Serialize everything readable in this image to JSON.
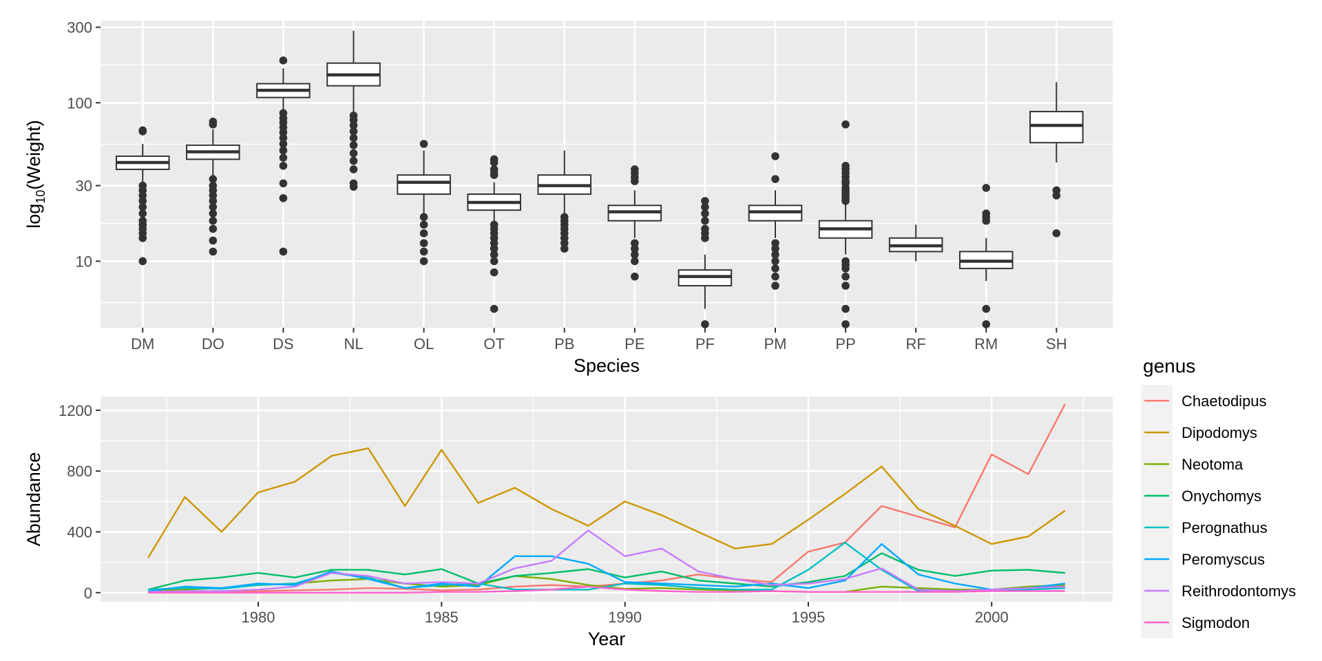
{
  "chart_data": [
    {
      "type": "box",
      "xlabel": "Species",
      "ylabel": "log10(Weight)",
      "ylabel_base": "log",
      "ylabel_sub": "10",
      "ylabel_rest": "(Weight)",
      "y_scale": "log10",
      "ylim": [
        3.8,
        330
      ],
      "yticks": [
        10,
        30,
        100,
        300
      ],
      "grid": true,
      "boxes": [
        {
          "species": "DM",
          "q1": 38,
          "median": 42,
          "q3": 46,
          "wlo": 31,
          "whi": 55,
          "outliers": [
            66,
            67,
            30,
            28,
            26,
            24,
            22,
            20,
            18,
            17,
            16,
            15,
            14,
            10
          ]
        },
        {
          "species": "DO",
          "q1": 44,
          "median": 49,
          "q3": 54,
          "wlo": 34,
          "whi": 68,
          "outliers": [
            73,
            76,
            33,
            30,
            28,
            26,
            24,
            22,
            20,
            18,
            16,
            13.5,
            11.5
          ]
        },
        {
          "species": "DS",
          "q1": 108,
          "median": 120,
          "q3": 132,
          "wlo": 88,
          "whi": 165,
          "outliers": [
            185,
            86,
            80,
            75,
            70,
            65,
            60,
            55,
            50,
            45,
            40,
            31,
            25,
            11.5
          ]
        },
        {
          "species": "NL",
          "q1": 128,
          "median": 150,
          "q3": 178,
          "wlo": 86,
          "whi": 285,
          "outliers": [
            83,
            78,
            72,
            66,
            60,
            54,
            48,
            43,
            38,
            31,
            29.5
          ]
        },
        {
          "species": "OL",
          "q1": 26.5,
          "median": 31.5,
          "q3": 35,
          "wlo": 20,
          "whi": 50,
          "outliers": [
            55,
            19,
            17,
            15,
            13,
            11.5,
            10
          ]
        },
        {
          "species": "OT",
          "q1": 21,
          "median": 23.5,
          "q3": 26.5,
          "wlo": 17,
          "whi": 31.5,
          "outliers": [
            44,
            42,
            38,
            36,
            35,
            17,
            16,
            15,
            14,
            13,
            12,
            11,
            10,
            8.5,
            5
          ]
        },
        {
          "species": "PB",
          "q1": 26.5,
          "median": 30,
          "q3": 35,
          "wlo": 19.5,
          "whi": 50,
          "outliers": [
            19,
            18,
            17,
            16,
            15,
            14,
            13,
            12
          ]
        },
        {
          "species": "PE",
          "q1": 18,
          "median": 20.5,
          "q3": 22.5,
          "wlo": 14,
          "whi": 28,
          "outliers": [
            38,
            36,
            34,
            32,
            13,
            12,
            11,
            10,
            8
          ]
        },
        {
          "species": "PF",
          "q1": 7,
          "median": 8,
          "q3": 8.8,
          "wlo": 5,
          "whi": 11,
          "outliers": [
            24,
            22,
            20,
            18,
            16,
            15,
            14,
            4
          ]
        },
        {
          "species": "PM",
          "q1": 18,
          "median": 20.5,
          "q3": 22.5,
          "wlo": 14,
          "whi": 28,
          "outliers": [
            46,
            33,
            13,
            12,
            11,
            10,
            9,
            8,
            7
          ]
        },
        {
          "species": "PP",
          "q1": 14,
          "median": 16,
          "q3": 18,
          "wlo": 11,
          "whi": 23,
          "outliers": [
            73,
            40,
            38,
            36,
            34,
            32,
            31,
            29,
            28,
            27,
            26,
            25,
            24,
            10,
            9.5,
            9,
            8,
            7,
            5,
            4
          ]
        },
        {
          "species": "RF",
          "q1": 11.5,
          "median": 12.5,
          "q3": 14,
          "wlo": 10,
          "whi": 17,
          "outliers": []
        },
        {
          "species": "RM",
          "q1": 9,
          "median": 10,
          "q3": 11.5,
          "wlo": 7.5,
          "whi": 14,
          "outliers": [
            29,
            20,
            19,
            18,
            5,
            4
          ]
        },
        {
          "species": "SH",
          "q1": 56,
          "median": 72,
          "q3": 88,
          "wlo": 42,
          "whi": 135,
          "outliers": [
            28,
            26,
            15
          ]
        }
      ]
    },
    {
      "type": "line",
      "xlabel": "Year",
      "ylabel": "Abundance",
      "xlim": [
        1975.7,
        2003.3
      ],
      "ylim": [
        -60,
        1290
      ],
      "xticks": [
        1980,
        1985,
        1990,
        1995,
        2000
      ],
      "yticks": [
        0,
        400,
        800,
        1200
      ],
      "grid": true,
      "x": [
        1977,
        1978,
        1979,
        1980,
        1981,
        1982,
        1983,
        1984,
        1985,
        1986,
        1987,
        1988,
        1989,
        1990,
        1991,
        1992,
        1993,
        1994,
        1995,
        1996,
        1997,
        1998,
        1999,
        2000,
        2001,
        2002
      ],
      "legend_title": "genus",
      "legend_position": "right",
      "series": [
        {
          "name": "Chaetodipus",
          "color": "#F8766D",
          "values": [
            5,
            3,
            5,
            10,
            15,
            20,
            30,
            25,
            15,
            20,
            40,
            50,
            40,
            60,
            80,
            120,
            90,
            70,
            270,
            330,
            570,
            500,
            430,
            910,
            780,
            1240
          ]
        },
        {
          "name": "Dipodomys",
          "color": "#CD9600",
          "values": [
            230,
            630,
            400,
            660,
            730,
            900,
            950,
            570,
            940,
            590,
            690,
            550,
            440,
            600,
            510,
            400,
            290,
            320,
            480,
            650,
            830,
            550,
            440,
            320,
            370,
            540
          ]
        },
        {
          "name": "Neotoma",
          "color": "#7CAE00",
          "values": [
            10,
            20,
            30,
            50,
            60,
            80,
            90,
            60,
            40,
            50,
            110,
            90,
            50,
            25,
            30,
            20,
            15,
            10,
            5,
            5,
            40,
            30,
            20,
            20,
            40,
            50
          ]
        },
        {
          "name": "Onychomys",
          "color": "#00BE67",
          "values": [
            20,
            80,
            100,
            130,
            100,
            150,
            150,
            120,
            155,
            60,
            110,
            130,
            155,
            100,
            140,
            80,
            60,
            40,
            70,
            110,
            260,
            150,
            110,
            145,
            150,
            130
          ]
        },
        {
          "name": "Perognathus",
          "color": "#00BFC4",
          "values": [
            20,
            30,
            25,
            50,
            60,
            130,
            100,
            30,
            50,
            60,
            20,
            20,
            20,
            60,
            50,
            30,
            20,
            20,
            150,
            330,
            150,
            10,
            10,
            15,
            20,
            30
          ]
        },
        {
          "name": "Peromyscus",
          "color": "#00A9FF",
          "values": [
            10,
            40,
            30,
            60,
            50,
            140,
            90,
            30,
            60,
            40,
            240,
            240,
            190,
            70,
            60,
            50,
            40,
            60,
            30,
            80,
            320,
            120,
            60,
            20,
            30,
            60
          ]
        },
        {
          "name": "Reithrodontomys",
          "color": "#C77CFF",
          "values": [
            5,
            10,
            10,
            20,
            40,
            130,
            110,
            60,
            70,
            60,
            160,
            210,
            410,
            240,
            290,
            140,
            90,
            50,
            60,
            90,
            160,
            20,
            10,
            20,
            30,
            40
          ]
        },
        {
          "name": "Sigmodon",
          "color": "#FF61CC",
          "values": [
            0,
            0,
            0,
            0,
            0,
            0,
            0,
            0,
            5,
            5,
            10,
            20,
            40,
            20,
            10,
            5,
            5,
            10,
            5,
            5,
            5,
            5,
            5,
            10,
            10,
            10
          ]
        }
      ]
    }
  ]
}
